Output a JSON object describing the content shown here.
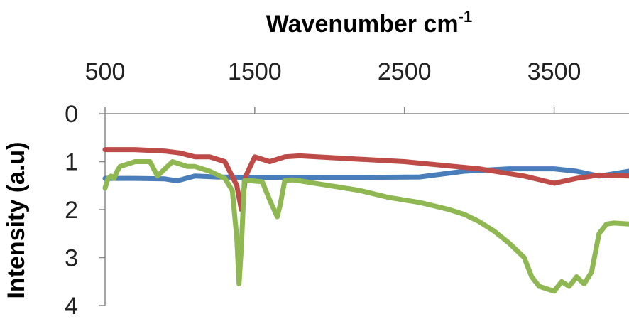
{
  "chart_data": {
    "type": "line",
    "xlabel": "Wavenumber cm",
    "xlabel_superscript": "-1",
    "ylabel": "Intensity (a.u)",
    "x_axis_position": "top",
    "y_inverted": true,
    "xlim": [
      500,
      4000
    ],
    "ylim": [
      0,
      4
    ],
    "x_ticks": [
      500,
      1500,
      2500,
      3500
    ],
    "y_ticks": [
      0,
      1,
      2,
      3,
      4
    ],
    "grid": false,
    "series": [
      {
        "color": "#4a7ebb",
        "x": [
          500,
          700,
          900,
          980,
          1100,
          1250,
          1500,
          1800,
          2200,
          2600,
          2900,
          3200,
          3500,
          3650,
          3800,
          3900,
          4000
        ],
        "y": [
          1.35,
          1.35,
          1.36,
          1.4,
          1.3,
          1.32,
          1.33,
          1.33,
          1.33,
          1.32,
          1.2,
          1.15,
          1.15,
          1.2,
          1.3,
          1.25,
          1.2
        ]
      },
      {
        "color": "#be4b48",
        "x": [
          500,
          700,
          900,
          1000,
          1100,
          1200,
          1300,
          1380,
          1410,
          1440,
          1500,
          1600,
          1700,
          1800,
          2200,
          2500,
          3000,
          3300,
          3500,
          3650,
          3800,
          4000
        ],
        "y": [
          0.75,
          0.75,
          0.78,
          0.82,
          0.9,
          0.9,
          1.0,
          1.5,
          2.0,
          1.3,
          0.9,
          1.0,
          0.9,
          0.88,
          0.95,
          1.0,
          1.15,
          1.3,
          1.45,
          1.35,
          1.28,
          1.3
        ]
      },
      {
        "color": "#8fb853",
        "x": [
          500,
          520,
          540,
          560,
          580,
          600,
          650,
          700,
          800,
          850,
          900,
          950,
          1000,
          1050,
          1100,
          1200,
          1300,
          1350,
          1380,
          1395,
          1410,
          1430,
          1480,
          1550,
          1600,
          1650,
          1670,
          1700,
          1750,
          1800,
          1900,
          2000,
          2200,
          2400,
          2600,
          2800,
          2900,
          3000,
          3100,
          3200,
          3300,
          3350,
          3400,
          3450,
          3500,
          3550,
          3600,
          3650,
          3700,
          3750,
          3800,
          3850,
          3900,
          4000
        ],
        "y": [
          1.55,
          1.35,
          1.3,
          1.35,
          1.2,
          1.1,
          1.05,
          1.0,
          1.0,
          1.3,
          1.15,
          1.0,
          1.05,
          1.1,
          1.1,
          1.2,
          1.35,
          1.6,
          2.6,
          3.55,
          2.8,
          1.4,
          1.4,
          1.42,
          1.8,
          2.15,
          1.9,
          1.4,
          1.38,
          1.4,
          1.45,
          1.5,
          1.6,
          1.75,
          1.85,
          2.0,
          2.1,
          2.25,
          2.45,
          2.7,
          3.0,
          3.4,
          3.6,
          3.65,
          3.7,
          3.5,
          3.6,
          3.4,
          3.55,
          3.3,
          2.5,
          2.3,
          2.28,
          2.3
        ]
      }
    ]
  }
}
